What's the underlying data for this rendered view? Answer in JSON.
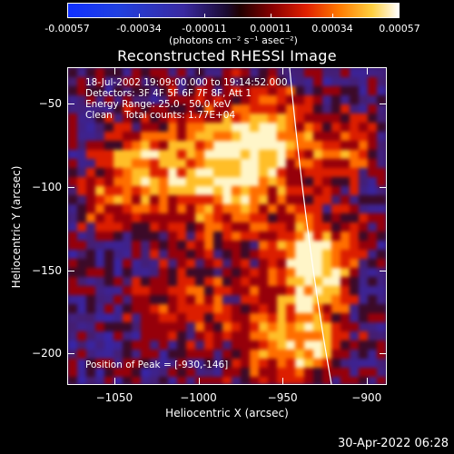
{
  "colorbar": {
    "tick_labels": [
      "-0.00057",
      "-0.00034",
      "-0.00011",
      "0.00011",
      "0.00034",
      "0.00057"
    ],
    "units": "(photons cm⁻² s⁻¹ asec⁻²)"
  },
  "title": "Reconstructed RHESSI Image",
  "info": {
    "time_range": "18-Jul-2002 19:09:00.000 to 19:14:52.000",
    "detectors": "Detectors: 3F 4F 5F 6F 7F 8F, Att 1",
    "energy": "Energy Range: 25.0 - 50.0 keV",
    "algorithm": "Clean    Total counts: 1.77E+04"
  },
  "peak": "Position of Peak = [-930,-146]",
  "axes": {
    "xlabel": "Heliocentric X (arcsec)",
    "ylabel": "Heliocentric Y (arcsec)",
    "xticks": [
      "-1050",
      "-1000",
      "-950",
      "-900"
    ],
    "yticks": [
      "-50",
      "-100",
      "-150",
      "-200"
    ],
    "xlim": [
      -1078,
      -888
    ],
    "ylim": [
      -219,
      -28
    ]
  },
  "timestamp": "30-Apr-2022 06:28",
  "colors": {
    "background": "#000000",
    "foreground": "#ffffff",
    "limb_line": "#ffffff"
  }
}
